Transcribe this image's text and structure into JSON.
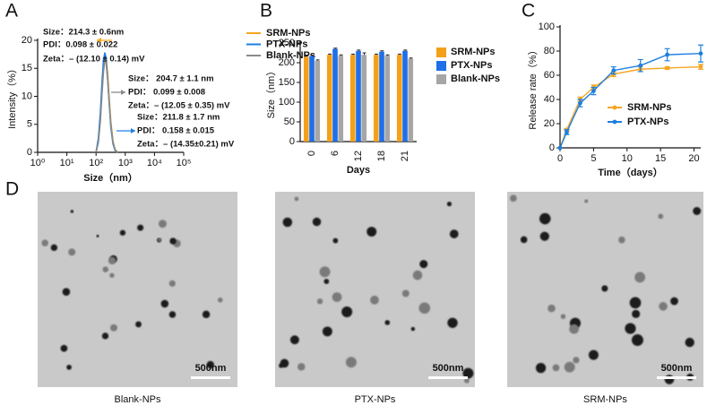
{
  "chart_data": [
    {
      "type": "line",
      "panel": "A",
      "xlabel": "Size（nm）",
      "ylabel": "Intensity（%）",
      "xscale": "log",
      "xlim": [
        1,
        100000
      ],
      "xticks": [
        {
          "value": 1,
          "label": "10⁰"
        },
        {
          "value": 10,
          "label": "10¹"
        },
        {
          "value": 100,
          "label": "10²"
        },
        {
          "value": 1000,
          "label": "10³"
        },
        {
          "value": 10000,
          "label": "10⁴"
        },
        {
          "value": 100000,
          "label": "10⁵"
        }
      ],
      "ylim": [
        0,
        20
      ],
      "yticks": [
        0,
        5,
        10,
        15,
        20
      ],
      "x": [
        100,
        120,
        140,
        160,
        180,
        200,
        220,
        250,
        280,
        320,
        380,
        450,
        550
      ],
      "series": [
        {
          "name": "SRM-NPs",
          "color": "#f5a623",
          "values": [
            0,
            2,
            6,
            11,
            15.5,
            17.5,
            17,
            14,
            10,
            5.5,
            2,
            0.5,
            0
          ]
        },
        {
          "name": "PTX-NPs",
          "color": "#1e7fe0",
          "values": [
            0,
            2.5,
            7,
            12.5,
            16.5,
            17.8,
            16.8,
            13,
            9,
            4.5,
            1.5,
            0.3,
            0
          ]
        },
        {
          "name": "Blank-NPs",
          "color": "#8a8a8a",
          "values": [
            0,
            1.8,
            5.5,
            10.5,
            14.5,
            16.5,
            16,
            13,
            9,
            5,
            1.8,
            0.4,
            0
          ]
        }
      ],
      "annotations": [
        {
          "text": "Size：214.3 ± 0.6nm",
          "color": "#f5a623"
        },
        {
          "text": "PDI：0.098 ± 0.022",
          "color": "#f5a623"
        },
        {
          "text": "Zeta：– (12.10 ± 0.14) mV",
          "color": "#f5a623"
        },
        {
          "text": "Size：  204.7 ± 1.1 nm",
          "color": "#8a8a8a"
        },
        {
          "text": "PDI：  0.099 ± 0.008",
          "color": "#8a8a8a"
        },
        {
          "text": "Zeta：– (12.05 ± 0.35) mV",
          "color": "#8a8a8a"
        },
        {
          "text": "Size：211.8 ± 1.7 nm",
          "color": "#1e7fe0"
        },
        {
          "text": "PDI：  0.158 ± 0.015",
          "color": "#1e7fe0"
        },
        {
          "text": "Zeta：– (14.35±0.21) mV",
          "color": "#1e7fe0"
        }
      ]
    },
    {
      "type": "bar",
      "panel": "B",
      "xlabel": "Days",
      "ylabel": "Size（nm）",
      "categories": [
        "0",
        "6",
        "12",
        "18",
        "21"
      ],
      "ylim": [
        0,
        250
      ],
      "yticks": [
        0,
        50,
        100,
        150,
        200,
        250
      ],
      "series": [
        {
          "name": "SRM-NPs",
          "color": "#f5a01a",
          "values": [
            215,
            220,
            220,
            220,
            220
          ],
          "errors": [
            2,
            2,
            2,
            2,
            2
          ]
        },
        {
          "name": "PTX-NPs",
          "color": "#1f6fe8",
          "values": [
            217,
            235,
            230,
            228,
            230
          ],
          "errors": [
            2,
            2,
            2,
            2,
            2
          ]
        },
        {
          "name": "Blank-NPs",
          "color": "#a6a6a6",
          "values": [
            205,
            218,
            220,
            218,
            210
          ],
          "errors": [
            2,
            2,
            5,
            2,
            2
          ]
        }
      ]
    },
    {
      "type": "line",
      "panel": "C",
      "xlabel": "Time（days）",
      "ylabel": "Release rate（%）",
      "xlim": [
        0,
        21
      ],
      "xticks": [
        0,
        5,
        10,
        15,
        20
      ],
      "ylim": [
        0,
        100
      ],
      "yticks": [
        0,
        20,
        40,
        60,
        80,
        100
      ],
      "x": [
        0,
        1,
        3,
        5,
        8,
        12,
        16,
        21
      ],
      "series": [
        {
          "name": "SRM-NPs",
          "color": "#f5a623",
          "values": [
            0,
            15,
            40,
            50,
            61,
            65,
            66,
            67
          ],
          "errors": [
            0,
            1,
            2,
            2,
            2,
            2,
            1,
            2
          ]
        },
        {
          "name": "PTX-NPs",
          "color": "#1e7fe0",
          "values": [
            0,
            13,
            37,
            47,
            64,
            68,
            77,
            78
          ],
          "errors": [
            0,
            2,
            3,
            3,
            3,
            5,
            5,
            7
          ]
        }
      ]
    }
  ],
  "images": {
    "panel": "D",
    "items": [
      {
        "label": "Blank-NPs",
        "scale_bar": "500nm"
      },
      {
        "label": "PTX-NPs",
        "scale_bar": "500nm"
      },
      {
        "label": "SRM-NPs",
        "scale_bar": "500nm"
      }
    ]
  }
}
